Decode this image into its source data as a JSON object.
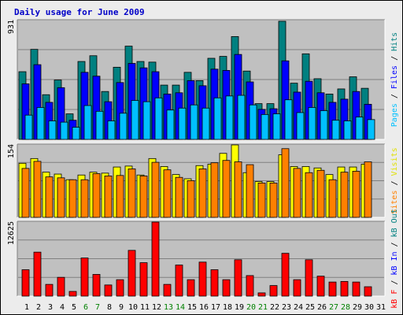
{
  "title": "Daily usage for June 2009",
  "colors": {
    "hits": "#008080",
    "files": "#0000ff",
    "pages": "#00ffff",
    "visits": "#ffff00",
    "sites": "#ff8000",
    "kbin": "#0000ff",
    "kbout": "#008080",
    "kbf": "#ff0000",
    "panel": "#c0c0c0"
  },
  "chart_data": [
    {
      "type": "bar",
      "max_label": "931",
      "ylim": [
        0,
        931
      ],
      "categories": [
        "1",
        "2",
        "3",
        "4",
        "5",
        "6",
        "7",
        "8",
        "9",
        "10",
        "11",
        "12",
        "13",
        "14",
        "15",
        "16",
        "17",
        "18",
        "19",
        "20",
        "21",
        "22",
        "23",
        "24",
        "25",
        "26",
        "27",
        "28",
        "29",
        "30",
        "31"
      ],
      "axis_labels": [
        {
          "text": "Pages",
          "color": "#00c0ff"
        },
        {
          "text": " / ",
          "color": "#000000"
        },
        {
          "text": "Files",
          "color": "#0000ff"
        },
        {
          "text": " / ",
          "color": "#000000"
        },
        {
          "text": "Hits",
          "color": "#008080"
        }
      ],
      "series": [
        {
          "name": "Hits",
          "color": "#008080",
          "values": [
            530,
            705,
            350,
            465,
            200,
            610,
            655,
            375,
            565,
            730,
            610,
            605,
            425,
            425,
            525,
            460,
            635,
            650,
            805,
            535,
            280,
            280,
            925,
            440,
            670,
            475,
            355,
            395,
            490,
            400,
            0
          ]
        },
        {
          "name": "Files",
          "color": "#0000ff",
          "values": [
            435,
            585,
            290,
            405,
            150,
            525,
            495,
            295,
            445,
            595,
            560,
            530,
            355,
            365,
            460,
            420,
            550,
            540,
            665,
            450,
            235,
            240,
            615,
            370,
            455,
            365,
            290,
            315,
            375,
            275,
            0
          ]
        },
        {
          "name": "Pages",
          "color": "#00c0ff",
          "values": [
            190,
            250,
            145,
            135,
            95,
            265,
            220,
            145,
            205,
            305,
            295,
            325,
            230,
            245,
            270,
            245,
            325,
            340,
            345,
            270,
            195,
            200,
            310,
            210,
            250,
            225,
            150,
            145,
            175,
            155,
            0
          ]
        }
      ]
    },
    {
      "type": "bar",
      "max_label": "154",
      "ylim": [
        0,
        154
      ],
      "categories": [
        "1",
        "2",
        "3",
        "4",
        "5",
        "6",
        "7",
        "8",
        "9",
        "10",
        "11",
        "12",
        "13",
        "14",
        "15",
        "16",
        "17",
        "18",
        "19",
        "20",
        "21",
        "22",
        "23",
        "24",
        "25",
        "26",
        "27",
        "28",
        "29",
        "30",
        "31"
      ],
      "axis_labels": [
        {
          "text": "Sites",
          "color": "#ff8000"
        },
        {
          "text": " / ",
          "color": "#000000"
        },
        {
          "text": "Visits",
          "color": "#e0e000"
        }
      ],
      "series": [
        {
          "name": "Visits",
          "color": "#ffff00",
          "values": [
            115,
            125,
            96,
            92,
            80,
            90,
            96,
            94,
            107,
            109,
            90,
            125,
            108,
            91,
            82,
            110,
            113,
            136,
            154,
            95,
            76,
            76,
            133,
            108,
            108,
            105,
            91,
            107,
            107,
            113,
            0
          ]
        },
        {
          "name": "Sites",
          "color": "#ff8000",
          "values": [
            104,
            119,
            86,
            84,
            80,
            80,
            93,
            88,
            89,
            103,
            88,
            117,
            101,
            85,
            78,
            103,
            116,
            121,
            118,
            112,
            73,
            73,
            146,
            104,
            95,
            100,
            80,
            96,
            98,
            118,
            0
          ]
        }
      ]
    },
    {
      "type": "bar",
      "max_label": "12625",
      "ylim": [
        0,
        12625
      ],
      "categories": [
        "1",
        "2",
        "3",
        "4",
        "5",
        "6",
        "7",
        "8",
        "9",
        "10",
        "11",
        "12",
        "13",
        "14",
        "15",
        "16",
        "17",
        "18",
        "19",
        "20",
        "21",
        "22",
        "23",
        "24",
        "25",
        "26",
        "27",
        "28",
        "29",
        "30",
        "31"
      ],
      "axis_labels": [
        {
          "text": "kB F",
          "color": "#ff0000"
        },
        {
          "text": " / ",
          "color": "#000000"
        },
        {
          "text": "kB In",
          "color": "#0000ff"
        },
        {
          "text": " / ",
          "color": "#000000"
        },
        {
          "text": "kB Out",
          "color": "#008080"
        }
      ],
      "series": [
        {
          "name": "kB F",
          "color": "#ff0000",
          "values": [
            4500,
            7500,
            2000,
            3200,
            800,
            6500,
            3700,
            1900,
            2800,
            7800,
            5700,
            12625,
            2000,
            5300,
            2800,
            5800,
            4500,
            2800,
            6200,
            3500,
            550,
            1800,
            7300,
            2800,
            6200,
            3400,
            2400,
            2500,
            2400,
            1600,
            0
          ]
        }
      ]
    }
  ],
  "x_labels": [
    {
      "text": "1",
      "color": "#000000"
    },
    {
      "text": "2",
      "color": "#000000"
    },
    {
      "text": "3",
      "color": "#000000"
    },
    {
      "text": "4",
      "color": "#000000"
    },
    {
      "text": "5",
      "color": "#000000"
    },
    {
      "text": "6",
      "color": "#008000"
    },
    {
      "text": "7",
      "color": "#008000"
    },
    {
      "text": "8",
      "color": "#000000"
    },
    {
      "text": "9",
      "color": "#000000"
    },
    {
      "text": "10",
      "color": "#000000"
    },
    {
      "text": "11",
      "color": "#000000"
    },
    {
      "text": "12",
      "color": "#000000"
    },
    {
      "text": "13",
      "color": "#008000"
    },
    {
      "text": "14",
      "color": "#008000"
    },
    {
      "text": "15",
      "color": "#000000"
    },
    {
      "text": "16",
      "color": "#000000"
    },
    {
      "text": "17",
      "color": "#000000"
    },
    {
      "text": "18",
      "color": "#000000"
    },
    {
      "text": "19",
      "color": "#000000"
    },
    {
      "text": "20",
      "color": "#008000"
    },
    {
      "text": "21",
      "color": "#008000"
    },
    {
      "text": "22",
      "color": "#000000"
    },
    {
      "text": "23",
      "color": "#000000"
    },
    {
      "text": "24",
      "color": "#000000"
    },
    {
      "text": "25",
      "color": "#000000"
    },
    {
      "text": "26",
      "color": "#000000"
    },
    {
      "text": "27",
      "color": "#008000"
    },
    {
      "text": "28",
      "color": "#008000"
    },
    {
      "text": "29",
      "color": "#000000"
    },
    {
      "text": "30",
      "color": "#000000"
    },
    {
      "text": "31",
      "color": "#000000"
    }
  ]
}
